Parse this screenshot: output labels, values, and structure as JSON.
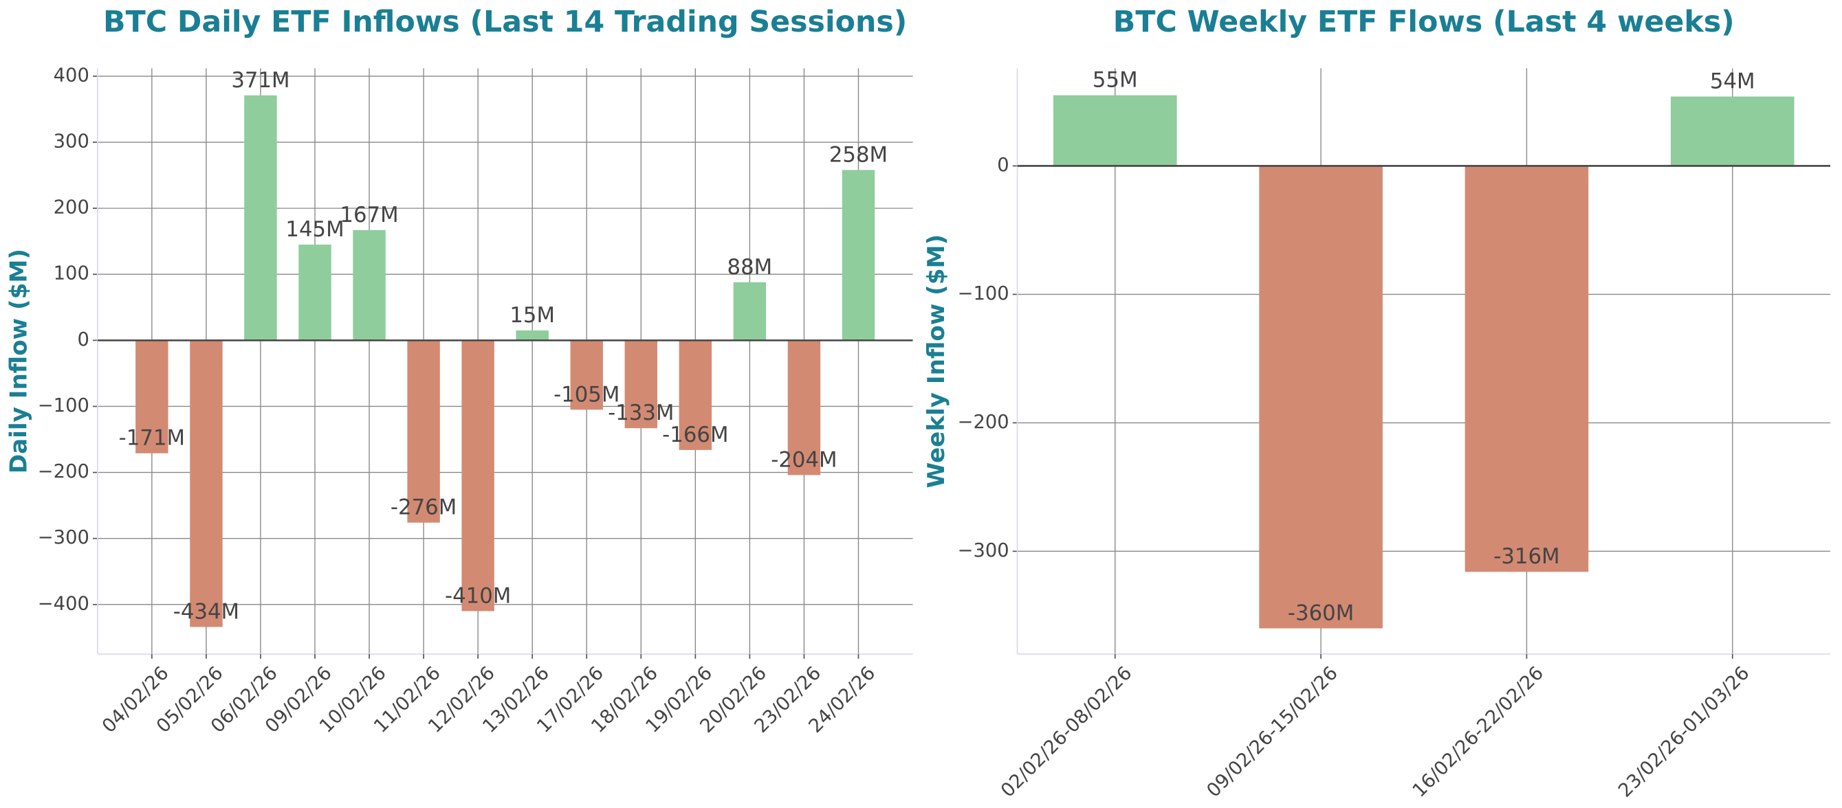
{
  "chart_data": [
    {
      "type": "bar",
      "title": "BTC Daily ETF Inflows (Last 14 Trading Sessions)",
      "y_label": "Daily Inflow ($M)",
      "categories": [
        "04/02/26",
        "05/02/26",
        "06/02/26",
        "09/02/26",
        "10/02/26",
        "11/02/26",
        "12/02/26",
        "13/02/26",
        "17/02/26",
        "18/02/26",
        "19/02/26",
        "20/02/26",
        "23/02/26",
        "24/02/26"
      ],
      "values": [
        -171,
        -434,
        371,
        145,
        167,
        -276,
        -410,
        15,
        -105,
        -133,
        -166,
        88,
        -204,
        258
      ],
      "value_labels": [
        "-171M",
        "-434M",
        "371M",
        "145M",
        "167M",
        "-276M",
        "-410M",
        "15M",
        "-105M",
        "-133M",
        "-166M",
        "88M",
        "-204M",
        "258M"
      ],
      "positive_color": "#8fcd9c",
      "negative_color": "#d38a73",
      "ylim": [
        -475,
        412
      ],
      "yticks": [
        {
          "value": -400,
          "label": "−400"
        },
        {
          "value": -300,
          "label": "−300"
        },
        {
          "value": -200,
          "label": "−200"
        },
        {
          "value": -100,
          "label": "−100"
        },
        0,
        100,
        200,
        300,
        400
      ],
      "grid": true
    },
    {
      "type": "bar",
      "title": "BTC Weekly ETF Flows (Last 4 weeks)",
      "y_label": "Weekly Inflow ($M)",
      "categories": [
        "02/02/26-08/02/26",
        "09/02/26-15/02/26",
        "16/02/26-22/02/26",
        "23/02/26-01/03/26"
      ],
      "values": [
        55,
        -360,
        -316,
        54
      ],
      "value_labels": [
        "55M",
        "-360M",
        "-316M",
        "54M"
      ],
      "positive_color": "#8fcd9c",
      "negative_color": "#d38a73",
      "ylim": [
        -380,
        76
      ],
      "yticks": [
        {
          "value": -300,
          "label": "−300"
        },
        {
          "value": -200,
          "label": "−200"
        },
        {
          "value": -100,
          "label": "−100"
        },
        0
      ],
      "grid": true
    }
  ]
}
